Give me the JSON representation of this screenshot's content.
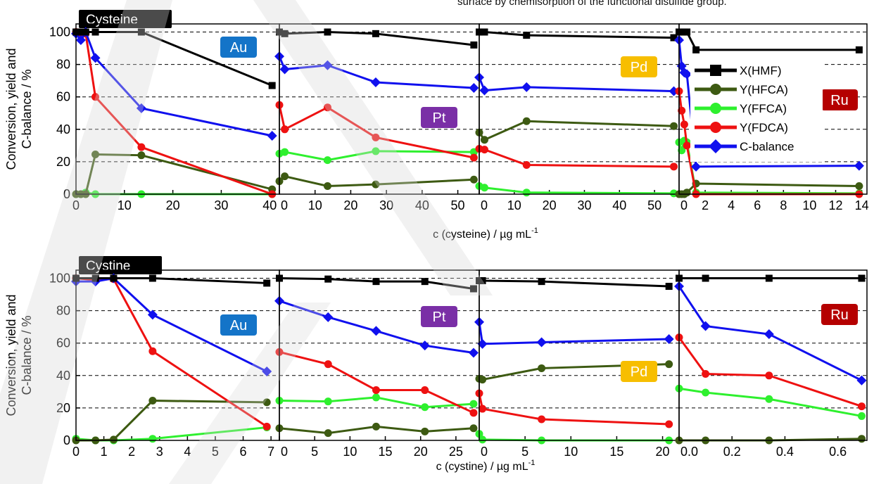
{
  "header_text": "surface by chemisorption of the functional disulfide group.",
  "series_meta": [
    {
      "key": "X(HMF)",
      "color": "#000000",
      "marker": "square"
    },
    {
      "key": "Y(HFCA)",
      "color": "#3d5a12",
      "marker": "circle"
    },
    {
      "key": "Y(FFCA)",
      "color": "#2ef02e",
      "marker": "circle"
    },
    {
      "key": "Y(FDCA)",
      "color": "#ee1111",
      "marker": "circle"
    },
    {
      "key": "C-balance",
      "color": "#1010ee",
      "marker": "diamond"
    }
  ],
  "legend_entries": [
    "X(HMF)",
    "Y(HFCA)",
    "Y(FFCA)",
    "Y(FDCA)",
    "C-balance"
  ],
  "badge_colors": {
    "Au": "#1474c8",
    "Pt": "#7a2fa6",
    "Pd": "#f7be00",
    "Ru": "#b50000"
  },
  "chart_data": [
    {
      "type": "line",
      "group_label": "Cysteine",
      "xlabel_main": "c (cysteine) / µg mL",
      "xlabel_sup": "-1",
      "ylabel_line1": "Conversion, yield and",
      "ylabel_line2": "C-balance / %",
      "ylim": [
        0,
        105
      ],
      "yticks": [
        0,
        20,
        40,
        60,
        80,
        100
      ],
      "grid": "dashed horizontal",
      "panels": [
        {
          "metal": "Au",
          "xlim": [
            0,
            42
          ],
          "xticks": [
            0,
            10,
            20,
            30,
            40
          ],
          "xtick_labels": [
            "0",
            "10",
            "20",
            "30",
            "40"
          ],
          "series": [
            {
              "name": "X(HMF)",
              "x": [
                0,
                1,
                2,
                4,
                13.5,
                40.5
              ],
              "y": [
                100,
                100,
                100,
                100,
                100,
                67
              ]
            },
            {
              "name": "Y(HFCA)",
              "x": [
                0,
                1,
                2,
                4,
                13.5,
                40.5
              ],
              "y": [
                0,
                0,
                0,
                24.5,
                24,
                3
              ]
            },
            {
              "name": "Y(FFCA)",
              "x": [
                0,
                1,
                2,
                4,
                13.5,
                40.5
              ],
              "y": [
                0,
                0,
                1,
                0,
                0,
                0
              ]
            },
            {
              "name": "Y(FDCA)",
              "x": [
                0,
                1,
                2,
                4,
                13.5,
                40.5
              ],
              "y": [
                100,
                98,
                99,
                60,
                29,
                0
              ]
            },
            {
              "name": "C-balance",
              "x": [
                0,
                1,
                2,
                4,
                13.5,
                40.5
              ],
              "y": [
                99,
                95,
                100,
                84,
                53,
                36
              ]
            }
          ]
        },
        {
          "metal": "Pt",
          "xlim": [
            0,
            56
          ],
          "xticks": [
            0,
            10,
            20,
            30,
            40,
            50
          ],
          "xtick_labels": [
            "0",
            "10",
            "20",
            "30",
            "40",
            "50"
          ],
          "series": [
            {
              "name": "X(HMF)",
              "x": [
                0,
                1.5,
                13.5,
                27,
                54.5
              ],
              "y": [
                100,
                99,
                100,
                99,
                92
              ]
            },
            {
              "name": "Y(HFCA)",
              "x": [
                0,
                1.5,
                13.5,
                27,
                54.5
              ],
              "y": [
                8,
                11,
                5,
                6,
                9
              ]
            },
            {
              "name": "Y(FFCA)",
              "x": [
                0,
                1.5,
                13.5,
                27,
                54.5
              ],
              "y": [
                25,
                26,
                21,
                26.5,
                26
              ]
            },
            {
              "name": "Y(FDCA)",
              "x": [
                0,
                1.5,
                13.5,
                27,
                54.5
              ],
              "y": [
                55,
                40,
                53.5,
                35,
                22.5
              ]
            },
            {
              "name": "C-balance",
              "x": [
                0,
                1.5,
                13.5,
                27,
                54.5
              ],
              "y": [
                85,
                77,
                79.5,
                69,
                65.5
              ]
            }
          ]
        },
        {
          "metal": "Pd",
          "xlim": [
            0,
            57
          ],
          "xticks": [
            0,
            10,
            20,
            30,
            40,
            50
          ],
          "xtick_labels": [
            "0",
            "10",
            "20",
            "30",
            "40",
            "50"
          ],
          "series": [
            {
              "name": "X(HMF)",
              "x": [
                0,
                1.5,
                13.5,
                55.5
              ],
              "y": [
                100,
                100,
                98,
                96.5
              ]
            },
            {
              "name": "Y(HFCA)",
              "x": [
                0,
                1.5,
                13.5,
                55.5
              ],
              "y": [
                38,
                33.5,
                45,
                42
              ]
            },
            {
              "name": "Y(FFCA)",
              "x": [
                0,
                1.5,
                13.5,
                55.5
              ],
              "y": [
                5,
                4,
                1,
                0.5
              ]
            },
            {
              "name": "Y(FDCA)",
              "x": [
                0,
                1.5,
                13.5,
                55.5
              ],
              "y": [
                28,
                27.5,
                18,
                17
              ]
            },
            {
              "name": "C-balance",
              "x": [
                0,
                1.5,
                13.5,
                55.5
              ],
              "y": [
                72,
                64,
                66,
                63.5
              ]
            }
          ]
        },
        {
          "metal": "Ru",
          "xlim": [
            0,
            14.4
          ],
          "xticks": [
            0,
            2,
            4,
            6,
            8,
            10,
            12,
            14
          ],
          "xtick_labels": [
            "0",
            "2",
            "4",
            "6",
            "8",
            "10",
            "12",
            "14"
          ],
          "series": [
            {
              "name": "X(HMF)",
              "x": [
                0,
                0.2,
                0.4,
                0.6,
                1.3,
                13.8
              ],
              "y": [
                100,
                100,
                100,
                100,
                89,
                89
              ]
            },
            {
              "name": "Y(HFCA)",
              "x": [
                0,
                0.2,
                0.4,
                0.6,
                1.3,
                13.8
              ],
              "y": [
                0,
                0,
                0,
                1,
                6.5,
                5
              ]
            },
            {
              "name": "Y(FFCA)",
              "x": [
                0,
                0.2,
                0.4,
                0.6,
                1.3,
                13.8
              ],
              "y": [
                32,
                27,
                33,
                32,
                1,
                0.5
              ]
            },
            {
              "name": "Y(FDCA)",
              "x": [
                0,
                0.2,
                0.4,
                0.6,
                1.3,
                13.8
              ],
              "y": [
                63.5,
                51.5,
                43,
                30,
                0,
                0
              ]
            },
            {
              "name": "C-balance",
              "x": [
                0,
                0.2,
                0.4,
                0.6,
                1.3,
                13.8
              ],
              "y": [
                95,
                79,
                75,
                74,
                17,
                17.5
              ]
            }
          ]
        }
      ]
    },
    {
      "type": "line",
      "group_label": "Cystine",
      "xlabel_main": "c (cystine) / µg mL",
      "xlabel_sup": "-1",
      "ylabel_line1": "Conversion, yield and",
      "ylabel_line2": "C-balance / %",
      "ylim": [
        0,
        105
      ],
      "yticks": [
        0,
        20,
        40,
        60,
        80,
        100
      ],
      "grid": "dashed horizontal",
      "panels": [
        {
          "metal": "Au",
          "xlim": [
            0,
            7.3
          ],
          "xticks": [
            0,
            1,
            2,
            3,
            4,
            5,
            6,
            7
          ],
          "xtick_labels": [
            "0",
            "1",
            "2",
            "3",
            "4",
            "5",
            "6",
            "7"
          ],
          "series": [
            {
              "name": "X(HMF)",
              "x": [
                0,
                0.7,
                1.35,
                2.75,
                6.85
              ],
              "y": [
                100,
                100,
                100,
                100,
                97
              ]
            },
            {
              "name": "Y(HFCA)",
              "x": [
                0,
                0.7,
                1.35,
                2.75,
                6.85
              ],
              "y": [
                0,
                0,
                0.5,
                24.5,
                23.5
              ]
            },
            {
              "name": "Y(FFCA)",
              "x": [
                0,
                0.7,
                1.35,
                2.75,
                6.85
              ],
              "y": [
                1,
                0,
                0,
                1,
                8
              ]
            },
            {
              "name": "Y(FDCA)",
              "x": [
                0,
                0.7,
                1.35,
                2.75,
                6.85
              ],
              "y": [
                100,
                99,
                99.5,
                55,
                8.5
              ]
            },
            {
              "name": "C-balance",
              "x": [
                0,
                0.7,
                1.35,
                2.75,
                6.85
              ],
              "y": [
                98,
                98,
                100,
                77.5,
                42.5
              ]
            }
          ]
        },
        {
          "metal": "Pt",
          "xlim": [
            0,
            28.3
          ],
          "xticks": [
            0,
            5,
            10,
            15,
            20,
            25
          ],
          "xtick_labels": [
            "0",
            "5",
            "10",
            "15",
            "20",
            "25"
          ],
          "series": [
            {
              "name": "X(HMF)",
              "x": [
                0,
                6.9,
                13.7,
                20.6,
                27.5
              ],
              "y": [
                100,
                99.5,
                98,
                98,
                93.5
              ]
            },
            {
              "name": "Y(HFCA)",
              "x": [
                0,
                6.9,
                13.7,
                20.6,
                27.5
              ],
              "y": [
                7.5,
                4.5,
                8.5,
                5.5,
                7.5
              ]
            },
            {
              "name": "Y(FFCA)",
              "x": [
                0,
                6.9,
                13.7,
                20.6,
                27.5
              ],
              "y": [
                24.5,
                24,
                26.5,
                20.5,
                22.5
              ]
            },
            {
              "name": "Y(FDCA)",
              "x": [
                0,
                6.9,
                13.7,
                20.6,
                27.5
              ],
              "y": [
                54.5,
                47,
                31,
                31,
                17
              ]
            },
            {
              "name": "C-balance",
              "x": [
                0,
                6.9,
                13.7,
                20.6,
                27.5
              ],
              "y": [
                86,
                76,
                67.5,
                58.5,
                54
              ]
            }
          ]
        },
        {
          "metal": "Pd",
          "xlim": [
            0,
            21.8
          ],
          "xticks": [
            0,
            5,
            10,
            15,
            20
          ],
          "xtick_labels": [
            "0",
            "5",
            "10",
            "15",
            "20"
          ],
          "series": [
            {
              "name": "X(HMF)",
              "x": [
                0,
                0.35,
                6.8,
                20.7
              ],
              "y": [
                98.5,
                98.5,
                98,
                95
              ]
            },
            {
              "name": "Y(HFCA)",
              "x": [
                0,
                0.35,
                6.8,
                20.7
              ],
              "y": [
                38,
                37.5,
                44.5,
                47
              ]
            },
            {
              "name": "Y(FFCA)",
              "x": [
                0,
                0.35,
                6.8,
                20.7
              ],
              "y": [
                4,
                0.5,
                0,
                0
              ]
            },
            {
              "name": "Y(FDCA)",
              "x": [
                0,
                0.35,
                6.8,
                20.7
              ],
              "y": [
                29,
                19.5,
                13,
                10
              ]
            },
            {
              "name": "C-balance",
              "x": [
                0,
                0.35,
                6.8,
                20.7
              ],
              "y": [
                73,
                59.5,
                60.5,
                62.5
              ]
            }
          ]
        },
        {
          "metal": "Ru",
          "xlim": [
            0,
            0.71
          ],
          "xticks": [
            0.0,
            0.2,
            0.4,
            0.6
          ],
          "xtick_labels": [
            "0.0",
            "0.2",
            "0.4",
            "0.6"
          ],
          "series": [
            {
              "name": "X(HMF)",
              "x": [
                0,
                0.1,
                0.34,
                0.69
              ],
              "y": [
                100,
                100,
                100,
                100
              ]
            },
            {
              "name": "Y(HFCA)",
              "x": [
                0,
                0.1,
                0.34,
                0.69
              ],
              "y": [
                0,
                0,
                0,
                1
              ]
            },
            {
              "name": "Y(FFCA)",
              "x": [
                0,
                0.1,
                0.34,
                0.69
              ],
              "y": [
                32,
                29.5,
                25.5,
                15
              ]
            },
            {
              "name": "Y(FDCA)",
              "x": [
                0,
                0.1,
                0.34,
                0.69
              ],
              "y": [
                63.5,
                41,
                40,
                21
              ]
            },
            {
              "name": "C-balance",
              "x": [
                0,
                0.1,
                0.34,
                0.69
              ],
              "y": [
                95,
                70.5,
                65.5,
                37
              ]
            }
          ]
        }
      ]
    }
  ]
}
